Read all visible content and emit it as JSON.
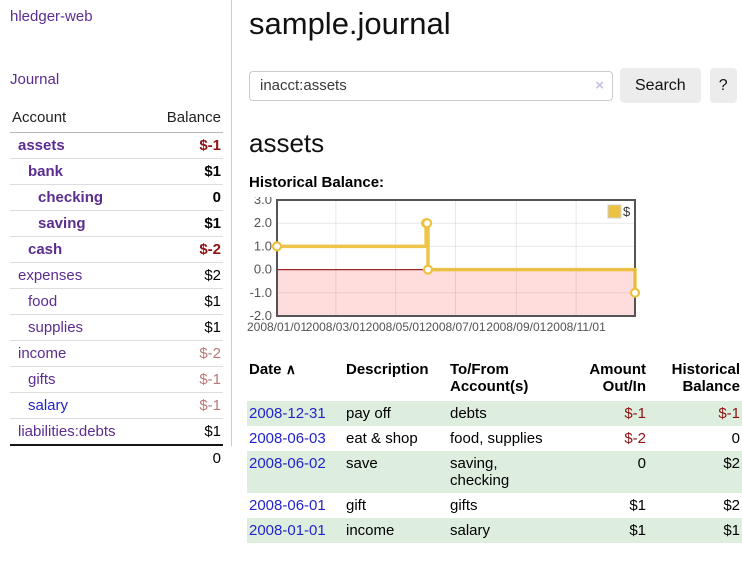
{
  "colors": {
    "link_purple": "#5c2d91",
    "link_blue": "#2323cc",
    "negative_strong": "#8e1212",
    "negative_soft": "#bb7878",
    "row_shade_green": "#deeede",
    "chart_line_gold": "#edc240",
    "chart_negative_region": "#ffdddd",
    "chart_zero_line": "#9a2b2b"
  },
  "sidebar": {
    "app_title": "hledger-web",
    "nav_journal": "Journal",
    "accounts": {
      "col_account": "Account",
      "col_balance": "Balance",
      "rows": [
        {
          "name": "assets",
          "depth": 0,
          "bold": true,
          "link_color": "purple",
          "balance": "$-1",
          "balance_tone": "neg-strong"
        },
        {
          "name": "bank",
          "depth": 1,
          "bold": true,
          "link_color": "purple",
          "balance": "$1",
          "balance_tone": "normal"
        },
        {
          "name": "checking",
          "depth": 2,
          "bold": true,
          "link_color": "purple",
          "balance": "0",
          "balance_tone": "normal"
        },
        {
          "name": "saving",
          "depth": 2,
          "bold": true,
          "link_color": "purple",
          "balance": "$1",
          "balance_tone": "normal"
        },
        {
          "name": "cash",
          "depth": 1,
          "bold": true,
          "link_color": "purple",
          "balance": "$-2",
          "balance_tone": "neg-strong"
        },
        {
          "name": "expenses",
          "depth": 0,
          "bold": false,
          "link_color": "purple",
          "balance": "$2",
          "balance_tone": "normal"
        },
        {
          "name": "food",
          "depth": 1,
          "bold": false,
          "link_color": "purple",
          "balance": "$1",
          "balance_tone": "normal"
        },
        {
          "name": "supplies",
          "depth": 1,
          "bold": false,
          "link_color": "purple",
          "balance": "$1",
          "balance_tone": "normal"
        },
        {
          "name": "income",
          "depth": 0,
          "bold": false,
          "link_color": "purple",
          "balance": "$-2",
          "balance_tone": "neg-soft"
        },
        {
          "name": "gifts",
          "depth": 1,
          "bold": false,
          "link_color": "purple",
          "balance": "$-1",
          "balance_tone": "neg-soft"
        },
        {
          "name": "salary",
          "depth": 1,
          "bold": false,
          "link_color": "blue",
          "balance": "$-1",
          "balance_tone": "neg-soft"
        },
        {
          "name": "liabilities:debts",
          "depth": 0,
          "bold": false,
          "link_color": "purple",
          "balance": "$1",
          "balance_tone": "normal"
        }
      ],
      "total": "0"
    }
  },
  "main": {
    "title": "sample.journal",
    "search": {
      "value": "inacct:assets",
      "clear_icon": "×",
      "search_button": "Search",
      "help_button": "?"
    },
    "account_heading": "assets",
    "chart_label": "Historical Balance:"
  },
  "chart_data": {
    "type": "line",
    "line_style": "step",
    "title": "Historical Balance",
    "series": [
      {
        "name": "$",
        "color": "#edc240",
        "points": [
          [
            "2008-01-01",
            1
          ],
          [
            "2008-06-01",
            2
          ],
          [
            "2008-06-02",
            2
          ],
          [
            "2008-06-03",
            0
          ],
          [
            "2008-12-31",
            -1
          ]
        ]
      }
    ],
    "xlim": [
      "2008-01-01",
      "2008-12-31"
    ],
    "ylim": [
      -2.0,
      3.0
    ],
    "yticks": [
      "3.0",
      "2.0",
      "1.0",
      "0.0",
      "-1.0",
      "-2.0"
    ],
    "xticks": [
      {
        "label": "2008/01/01",
        "date": "2008-01-01"
      },
      {
        "label": "2008/03/01",
        "date": "2008-03-01"
      },
      {
        "label": "2008/05/01",
        "date": "2008-05-01"
      },
      {
        "label": "2008/07/01",
        "date": "2008-07-01"
      },
      {
        "label": "2008/09/01",
        "date": "2008-09-01"
      },
      {
        "label": "2008/11/01",
        "date": "2008-11-01"
      }
    ],
    "legend": {
      "position": "top-right",
      "label": "$"
    },
    "grid": true,
    "negative_region_color": "#ffdddd",
    "zero_line_color": "#9a2b2b"
  },
  "register": {
    "headers": {
      "date": "Date",
      "sort_icon": "∧",
      "description": "Description",
      "account": "To/From Account(s)",
      "amount": "Amount Out/In",
      "balance": "Historical Balance"
    },
    "rows": [
      {
        "date": "2008-12-31",
        "description": "pay off",
        "account": "debts",
        "amount": "$-1",
        "amount_tone": "neg",
        "balance": "$-1",
        "balance_tone": "neg",
        "shaded": true
      },
      {
        "date": "2008-06-03",
        "description": "eat & shop",
        "account": "food, supplies",
        "amount": "$-2",
        "amount_tone": "neg",
        "balance": "0",
        "balance_tone": "normal",
        "shaded": false
      },
      {
        "date": "2008-06-02",
        "description": "save",
        "account": "saving, checking",
        "amount": "0",
        "amount_tone": "normal",
        "balance": "$2",
        "balance_tone": "normal",
        "shaded": true
      },
      {
        "date": "2008-06-01",
        "description": "gift",
        "account": "gifts",
        "amount": "$1",
        "amount_tone": "normal",
        "balance": "$2",
        "balance_tone": "normal",
        "shaded": false
      },
      {
        "date": "2008-01-01",
        "description": "income",
        "account": "salary",
        "amount": "$1",
        "amount_tone": "normal",
        "balance": "$1",
        "balance_tone": "normal",
        "shaded": true
      }
    ]
  }
}
